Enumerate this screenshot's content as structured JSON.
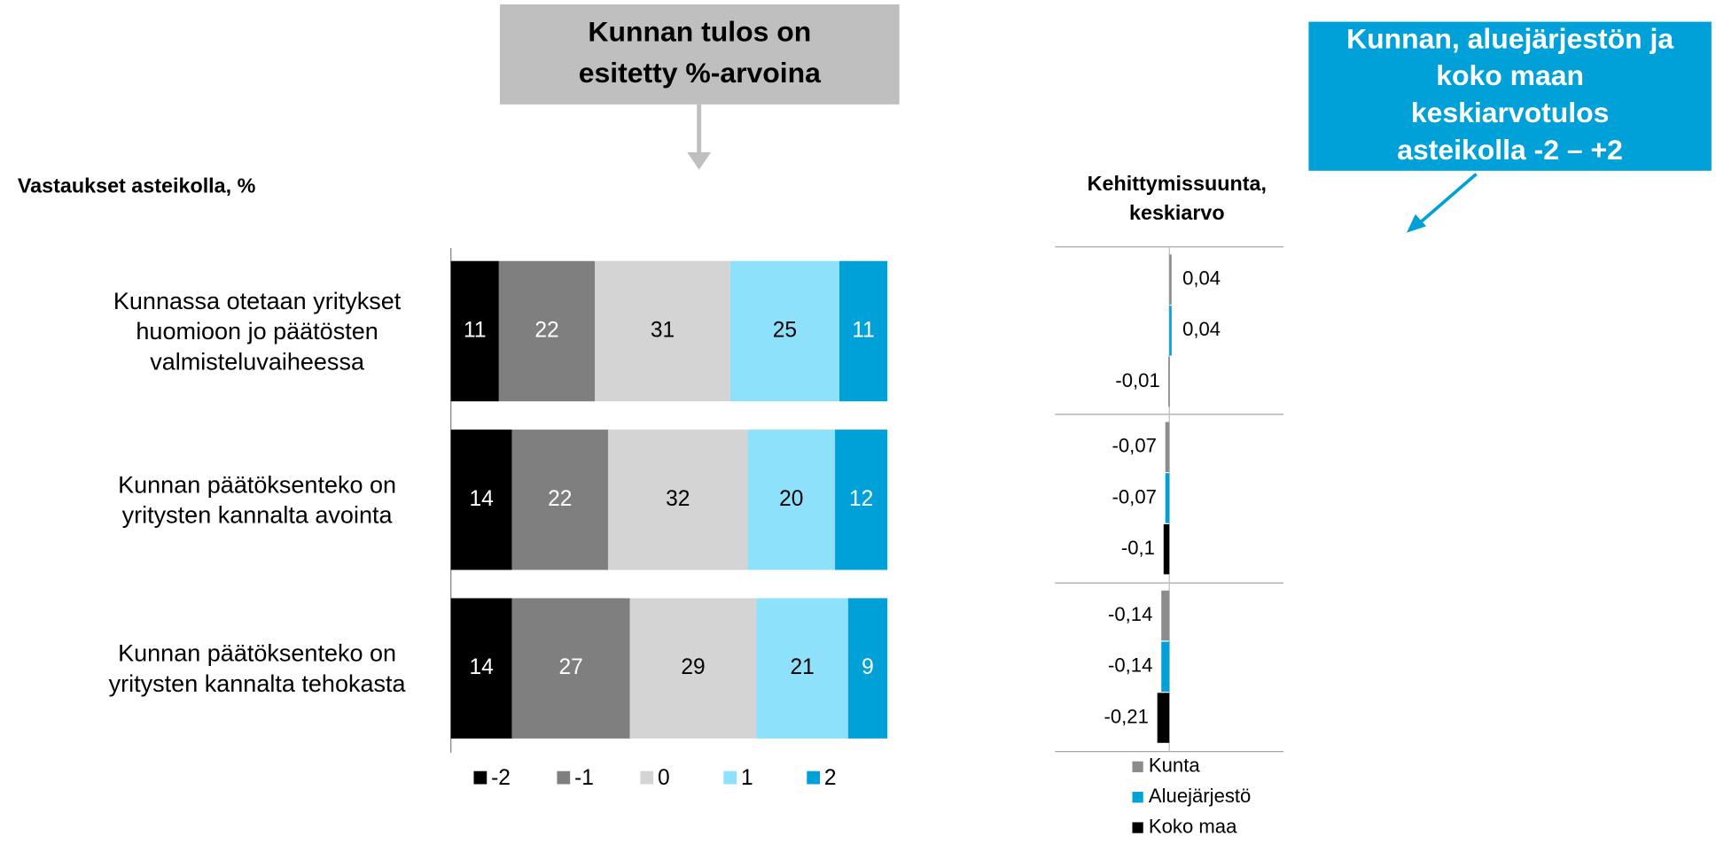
{
  "callouts": [
    {
      "lines": [
        "Kunnan tulos on",
        "esitetty %-arvoina"
      ],
      "color": "#bfbfbf",
      "text_color": "#000000"
    },
    {
      "lines": [
        "Kunnan, aluejärjestön ja",
        "koko maan",
        "keskiarvotulos",
        "asteikolla -2 – +2"
      ],
      "color": "#00a0d8",
      "text_color": "#ffffff"
    }
  ],
  "chart_data": [
    {
      "type": "stacked_bar",
      "orientation": "horizontal",
      "title": "Vastaukset asteikolla, %",
      "categories": [
        "Kunnassa otetaan yritykset huomioon jo päätösten valmisteluvaiheessa",
        "Kunnan päätöksenteko on yritysten kannalta avointa",
        "Kunnan päätöksenteko on yritysten kannalta tehokasta"
      ],
      "series": [
        {
          "name": "-2",
          "color": "#000000",
          "label_color": "#ffffff",
          "values": [
            11,
            14,
            14
          ]
        },
        {
          "name": "-1",
          "color": "#7f7f7f",
          "label_color": "#ffffff",
          "values": [
            22,
            22,
            27
          ]
        },
        {
          "name": "0",
          "color": "#d4d4d4",
          "label_color": "#000000",
          "values": [
            31,
            32,
            29
          ]
        },
        {
          "name": "1",
          "color": "#8ee1fb",
          "label_color": "#000000",
          "values": [
            25,
            20,
            21
          ]
        },
        {
          "name": "2",
          "color": "#00a0d8",
          "label_color": "#ffffff",
          "values": [
            11,
            12,
            9
          ]
        }
      ],
      "xlim": [
        0,
        100
      ],
      "legend": "bottom"
    },
    {
      "type": "bar",
      "orientation": "horizontal",
      "title": "Kehittymissuunta, keskiarvo",
      "categories": [
        null,
        null,
        null
      ],
      "series": [
        {
          "name": "Kunta",
          "color": "#8c8c8c",
          "values": [
            0.04,
            -0.07,
            -0.14
          ],
          "value_labels": [
            "0,04",
            "-0,07",
            "-0,14"
          ]
        },
        {
          "name": "Aluejärjestö",
          "color": "#00a0d8",
          "values": [
            0.04,
            -0.07,
            -0.14
          ],
          "value_labels": [
            "0,04",
            "-0,07",
            "-0,14"
          ]
        },
        {
          "name": "Koko maa",
          "color": "#000000",
          "values": [
            -0.01,
            -0.1,
            -0.21
          ],
          "value_labels": [
            "-0,01",
            "-0,1",
            "-0,21"
          ]
        }
      ],
      "xlim": [
        -2,
        2
      ],
      "legend": "bottom"
    }
  ]
}
